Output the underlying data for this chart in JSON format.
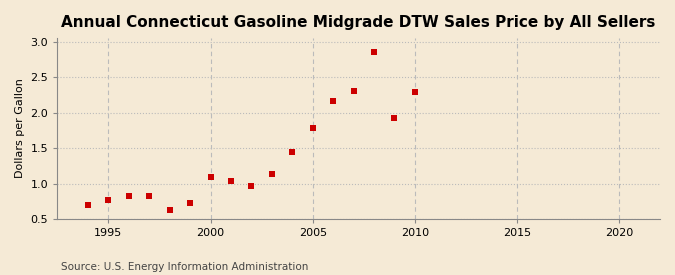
{
  "title": "Annual Connecticut Gasoline Midgrade DTW Sales Price by All Sellers",
  "ylabel": "Dollars per Gallon",
  "source": "Source: U.S. Energy Information Administration",
  "background_color": "#f5ead6",
  "plot_bg_color": "#f5ead6",
  "marker_color": "#cc0000",
  "grid_color": "#bbbbbb",
  "spine_color": "#888888",
  "xlim": [
    1992.5,
    2022
  ],
  "ylim": [
    0.5,
    3.05
  ],
  "xticks": [
    1995,
    2000,
    2005,
    2010,
    2015,
    2020
  ],
  "yticks": [
    0.5,
    1.0,
    1.5,
    2.0,
    2.5,
    3.0
  ],
  "years": [
    1994,
    1995,
    1996,
    1997,
    1998,
    1999,
    2000,
    2001,
    2002,
    2003,
    2004,
    2005,
    2006,
    2007,
    2008,
    2009,
    2010
  ],
  "values": [
    0.69,
    0.77,
    0.83,
    0.82,
    0.63,
    0.72,
    1.09,
    1.03,
    0.96,
    1.13,
    1.45,
    1.78,
    2.16,
    2.31,
    2.85,
    1.93,
    2.29
  ],
  "title_fontsize": 11,
  "label_fontsize": 8,
  "tick_fontsize": 8,
  "source_fontsize": 7.5,
  "marker_size": 16
}
